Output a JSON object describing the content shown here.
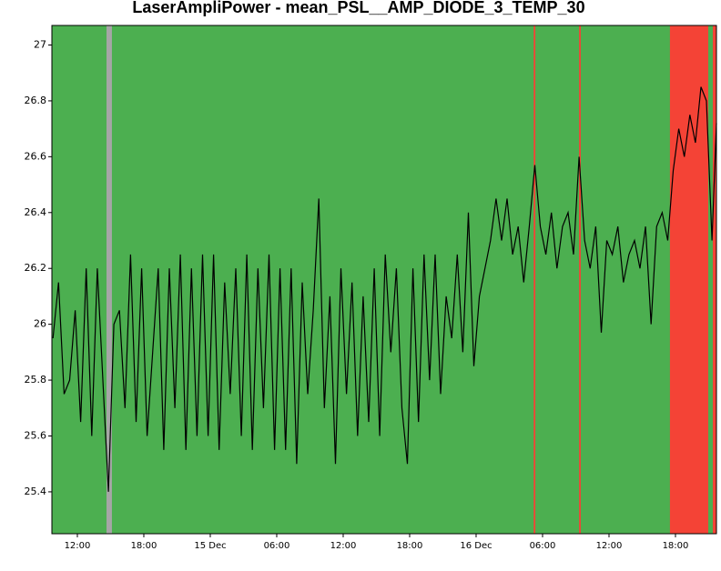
{
  "chart_data": {
    "type": "line",
    "title": "LaserAmpliPower - mean_PSL__AMP_DIODE_3_TEMP_30",
    "background": "#4caf50",
    "bands": [
      {
        "start": 14.63,
        "end": 15.12,
        "color": "#a6a6a6"
      },
      {
        "start": 53.2,
        "end": 53.35,
        "color": "#f44336"
      },
      {
        "start": 57.3,
        "end": 57.45,
        "color": "#f44336"
      },
      {
        "start": 65.5,
        "end": 68.96,
        "color": "#f44336"
      },
      {
        "start": 69.37,
        "end": 69.7,
        "color": "#f44336"
      }
    ],
    "color": "#000000",
    "x": [
      9.8,
      10.3,
      10.8,
      11.3,
      11.8,
      12.3,
      12.8,
      13.3,
      13.8,
      14.3,
      14.8,
      15.3,
      15.8,
      16.3,
      16.8,
      17.3,
      17.8,
      18.3,
      18.8,
      19.3,
      19.8,
      20.3,
      20.8,
      21.3,
      21.8,
      22.3,
      22.8,
      23.3,
      23.8,
      24.3,
      24.8,
      25.3,
      25.8,
      26.3,
      26.8,
      27.3,
      27.8,
      28.3,
      28.8,
      29.3,
      29.8,
      30.3,
      30.8,
      31.3,
      31.8,
      32.3,
      32.8,
      33.3,
      33.8,
      34.3,
      34.8,
      35.3,
      35.8,
      36.3,
      36.8,
      37.3,
      37.8,
      38.3,
      38.8,
      39.3,
      39.8,
      40.3,
      40.8,
      41.3,
      41.8,
      42.3,
      42.8,
      43.3,
      43.8,
      44.3,
      44.8,
      45.3,
      45.8,
      46.3,
      46.8,
      47.3,
      47.8,
      48.3,
      48.8,
      49.3,
      49.8,
      50.3,
      50.8,
      51.3,
      51.8,
      52.3,
      52.8,
      53.3,
      53.8,
      54.3,
      54.8,
      55.3,
      55.8,
      56.3,
      56.8,
      57.3,
      57.8,
      58.3,
      58.8,
      59.3,
      59.8,
      60.3,
      60.8,
      61.3,
      61.8,
      62.3,
      62.8,
      63.3,
      63.8,
      64.3,
      64.8,
      65.3,
      65.8,
      66.3,
      66.8,
      67.3,
      67.8,
      68.3,
      68.8,
      69.3,
      69.7
    ],
    "values": [
      25.95,
      26.15,
      25.75,
      25.8,
      26.05,
      25.65,
      26.2,
      25.6,
      26.2,
      25.8,
      25.4,
      26.0,
      26.05,
      25.7,
      26.25,
      25.65,
      26.2,
      25.6,
      25.9,
      26.2,
      25.55,
      26.2,
      25.7,
      26.25,
      25.55,
      26.2,
      25.6,
      26.25,
      25.6,
      26.25,
      25.55,
      26.15,
      25.75,
      26.2,
      25.6,
      26.25,
      25.55,
      26.2,
      25.7,
      26.25,
      25.55,
      26.2,
      25.55,
      26.2,
      25.5,
      26.15,
      25.75,
      26.05,
      26.45,
      25.7,
      26.1,
      25.5,
      26.2,
      25.75,
      26.15,
      25.6,
      26.1,
      25.65,
      26.2,
      25.6,
      26.25,
      25.9,
      26.2,
      25.7,
      25.5,
      26.2,
      25.65,
      26.25,
      25.8,
      26.25,
      25.75,
      26.1,
      25.95,
      26.25,
      25.9,
      26.4,
      25.85,
      26.1,
      26.2,
      26.3,
      26.45,
      26.3,
      26.45,
      26.25,
      26.35,
      26.15,
      26.35,
      26.57,
      26.35,
      26.25,
      26.4,
      26.2,
      26.35,
      26.4,
      26.25,
      26.6,
      26.3,
      26.2,
      26.35,
      25.97,
      26.3,
      26.25,
      26.35,
      26.15,
      26.25,
      26.3,
      26.2,
      26.35,
      26.0,
      26.35,
      26.4,
      26.3,
      26.55,
      26.7,
      26.6,
      26.75,
      26.65,
      26.85,
      26.8,
      26.3,
      26.72
    ],
    "xlim": [
      9.7,
      69.7
    ],
    "xticks": [
      {
        "value": 12,
        "label": "12:00"
      },
      {
        "value": 18,
        "label": "18:00"
      },
      {
        "value": 24,
        "label": "15 Dec"
      },
      {
        "value": 30,
        "label": "06:00"
      },
      {
        "value": 36,
        "label": "12:00"
      },
      {
        "value": 42,
        "label": "18:00"
      },
      {
        "value": 48,
        "label": "16 Dec"
      },
      {
        "value": 54,
        "label": "06:00"
      },
      {
        "value": 60,
        "label": "12:00"
      },
      {
        "value": 66,
        "label": "18:00"
      }
    ],
    "ylim": [
      25.25,
      27.07
    ],
    "yticks": [
      25.4,
      25.6,
      25.8,
      26,
      26.2,
      26.4,
      26.6,
      26.8,
      27
    ],
    "grid": false
  }
}
